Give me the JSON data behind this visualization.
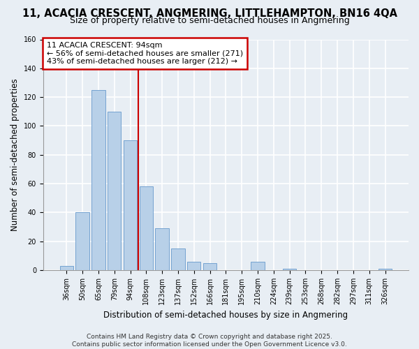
{
  "title": "11, ACACIA CRESCENT, ANGMERING, LITTLEHAMPTON, BN16 4QA",
  "subtitle": "Size of property relative to semi-detached houses in Angmering",
  "xlabel": "Distribution of semi-detached houses by size in Angmering",
  "ylabel": "Number of semi-detached properties",
  "bar_labels": [
    "36sqm",
    "50sqm",
    "65sqm",
    "79sqm",
    "94sqm",
    "108sqm",
    "123sqm",
    "137sqm",
    "152sqm",
    "166sqm",
    "181sqm",
    "195sqm",
    "210sqm",
    "224sqm",
    "239sqm",
    "253sqm",
    "268sqm",
    "282sqm",
    "297sqm",
    "311sqm",
    "326sqm"
  ],
  "bar_values": [
    3,
    40,
    125,
    110,
    90,
    58,
    29,
    15,
    6,
    5,
    0,
    0,
    6,
    0,
    1,
    0,
    0,
    0,
    0,
    0,
    1
  ],
  "highlight_index": 4,
  "bar_color_normal": "#b8d0e8",
  "bar_edge_color": "#6699cc",
  "marker_line_color": "#cc0000",
  "ylim": [
    0,
    160
  ],
  "yticks": [
    0,
    20,
    40,
    60,
    80,
    100,
    120,
    140,
    160
  ],
  "annotation_title": "11 ACACIA CRESCENT: 94sqm",
  "annotation_line2": "← 56% of semi-detached houses are smaller (271)",
  "annotation_line3": "43% of semi-detached houses are larger (212) →",
  "footer_line1": "Contains HM Land Registry data © Crown copyright and database right 2025.",
  "footer_line2": "Contains public sector information licensed under the Open Government Licence v3.0.",
  "bg_color": "#e8eef4",
  "grid_color": "#ffffff",
  "title_fontsize": 10.5,
  "subtitle_fontsize": 9,
  "axis_label_fontsize": 8.5,
  "tick_fontsize": 7,
  "annotation_fontsize": 8,
  "footer_fontsize": 6.5
}
